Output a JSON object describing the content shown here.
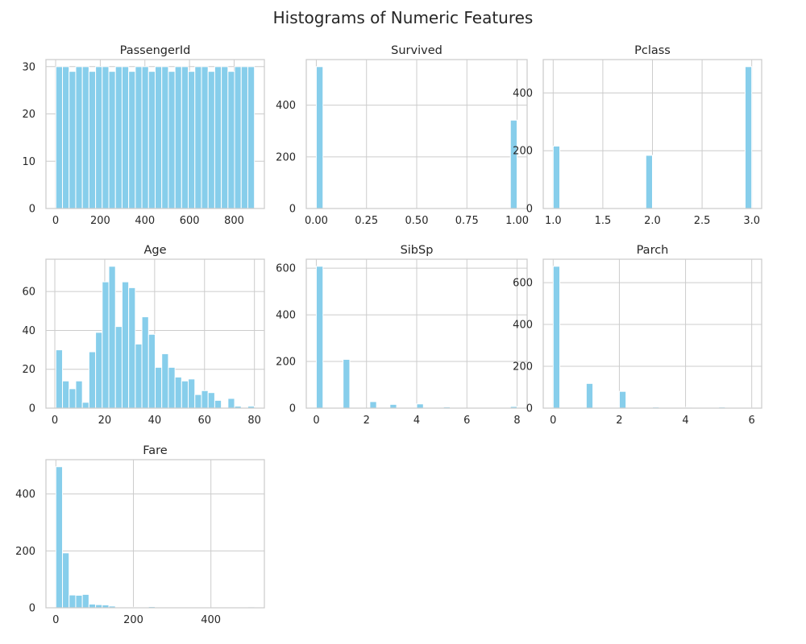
{
  "figure": {
    "title": "Histograms of Numeric Features",
    "bar_color": "#87ceeb",
    "grid_color": "#cccccc",
    "spine_color": "#cccccc",
    "background": "#ffffff"
  },
  "chart_data": [
    {
      "type": "bar",
      "title": "PassengerId",
      "xlabel": "",
      "ylabel": "",
      "bins": 30,
      "bin_range": [
        1,
        891
      ],
      "values": [
        30,
        30,
        29,
        30,
        30,
        29,
        30,
        30,
        29,
        30,
        30,
        29,
        30,
        30,
        29,
        30,
        30,
        29,
        30,
        30,
        29,
        30,
        30,
        29,
        30,
        30,
        29,
        30,
        30,
        30
      ],
      "xlim": [
        -43.5,
        935.5
      ],
      "ylim": [
        0,
        31.5
      ],
      "xticks": [
        0,
        200,
        400,
        600,
        800
      ],
      "yticks": [
        0,
        10,
        20,
        30
      ],
      "xtick_labels": [
        "0",
        "200",
        "400",
        "600",
        "800"
      ],
      "ytick_labels": [
        "0",
        "10",
        "20",
        "30"
      ],
      "grid": true
    },
    {
      "type": "bar",
      "title": "Survived",
      "xlabel": "",
      "ylabel": "",
      "bins": 30,
      "bin_range": [
        0,
        1
      ],
      "values": [
        549,
        0,
        0,
        0,
        0,
        0,
        0,
        0,
        0,
        0,
        0,
        0,
        0,
        0,
        0,
        0,
        0,
        0,
        0,
        0,
        0,
        0,
        0,
        0,
        0,
        0,
        0,
        0,
        0,
        342
      ],
      "xlim": [
        -0.05,
        1.05
      ],
      "ylim": [
        0,
        576.45
      ],
      "xticks": [
        0,
        0.25,
        0.5,
        0.75,
        1.0
      ],
      "yticks": [
        0,
        200,
        400
      ],
      "xtick_labels": [
        "0.00",
        "0.25",
        "0.50",
        "0.75",
        "1.00"
      ],
      "ytick_labels": [
        "0",
        "200",
        "400"
      ],
      "grid": true
    },
    {
      "type": "bar",
      "title": "Pclass",
      "xlabel": "",
      "ylabel": "",
      "bins": 30,
      "bin_range": [
        1,
        3
      ],
      "values": [
        216,
        0,
        0,
        0,
        0,
        0,
        0,
        0,
        0,
        0,
        0,
        0,
        0,
        0,
        184,
        0,
        0,
        0,
        0,
        0,
        0,
        0,
        0,
        0,
        0,
        0,
        0,
        0,
        0,
        491
      ],
      "xlim": [
        0.9,
        3.1
      ],
      "ylim": [
        0,
        515.55
      ],
      "xticks": [
        1.0,
        1.5,
        2.0,
        2.5,
        3.0
      ],
      "yticks": [
        0,
        200,
        400
      ],
      "xtick_labels": [
        "1.0",
        "1.5",
        "2.0",
        "2.5",
        "3.0"
      ],
      "ytick_labels": [
        "0",
        "200",
        "400"
      ],
      "grid": true
    },
    {
      "type": "bar",
      "title": "Age",
      "xlabel": "",
      "ylabel": "",
      "bins": 30,
      "bin_range": [
        0.42,
        80
      ],
      "values": [
        30,
        14,
        10,
        14,
        3,
        29,
        39,
        65,
        73,
        42,
        65,
        62,
        33,
        47,
        38,
        21,
        28,
        21,
        16,
        14,
        15,
        7,
        9,
        8,
        4,
        0,
        5,
        1,
        0,
        1
      ],
      "xlim": [
        -3.56,
        83.98
      ],
      "ylim": [
        0,
        76.65
      ],
      "xticks": [
        0,
        20,
        40,
        60,
        80
      ],
      "yticks": [
        0,
        20,
        40,
        60
      ],
      "xtick_labels": [
        "0",
        "20",
        "40",
        "60",
        "80"
      ],
      "ytick_labels": [
        "0",
        "20",
        "40",
        "60"
      ],
      "grid": true
    },
    {
      "type": "bar",
      "title": "SibSp",
      "xlabel": "",
      "ylabel": "",
      "bins": 30,
      "bin_range": [
        0,
        8
      ],
      "values": [
        608,
        0,
        0,
        0,
        209,
        0,
        0,
        0,
        28,
        0,
        0,
        16,
        0,
        0,
        0,
        18,
        0,
        0,
        0,
        5,
        0,
        0,
        0,
        0,
        0,
        0,
        0,
        0,
        0,
        7
      ],
      "xlim": [
        -0.4,
        8.4
      ],
      "ylim": [
        0,
        638.4
      ],
      "xticks": [
        0,
        2,
        4,
        6,
        8
      ],
      "yticks": [
        0,
        200,
        400,
        600
      ],
      "xtick_labels": [
        "0",
        "2",
        "4",
        "6",
        "8"
      ],
      "ytick_labels": [
        "0",
        "200",
        "400",
        "600"
      ],
      "grid": true
    },
    {
      "type": "bar",
      "title": "Parch",
      "xlabel": "",
      "ylabel": "",
      "bins": 30,
      "bin_range": [
        0,
        6
      ],
      "values": [
        678,
        0,
        0,
        0,
        0,
        118,
        0,
        0,
        0,
        0,
        80,
        0,
        0,
        0,
        0,
        5,
        0,
        0,
        0,
        0,
        4,
        0,
        0,
        0,
        0,
        5,
        0,
        0,
        0,
        1
      ],
      "xlim": [
        -0.3,
        6.3
      ],
      "ylim": [
        0,
        711.9
      ],
      "xticks": [
        0,
        2,
        4,
        6
      ],
      "yticks": [
        0,
        200,
        400,
        600
      ],
      "xtick_labels": [
        "0",
        "2",
        "4",
        "6"
      ],
      "ytick_labels": [
        "0",
        "200",
        "400",
        "600"
      ],
      "grid": true
    },
    {
      "type": "bar",
      "title": "Fare",
      "xlabel": "",
      "ylabel": "",
      "bins": 30,
      "bin_range": [
        0,
        512.33
      ],
      "values": [
        496,
        193,
        45,
        44,
        47,
        13,
        11,
        10,
        6,
        0,
        0,
        2,
        1,
        1,
        4,
        2,
        0,
        0,
        0,
        0,
        0,
        0,
        0,
        0,
        0,
        0,
        0,
        0,
        0,
        3
      ],
      "xlim": [
        -25.6,
        537.9
      ],
      "ylim": [
        0,
        520.8
      ],
      "xticks": [
        0,
        200,
        400
      ],
      "yticks": [
        0,
        200,
        400
      ],
      "xtick_labels": [
        "0",
        "200",
        "400"
      ],
      "ytick_labels": [
        "0",
        "200",
        "400"
      ],
      "grid": true
    }
  ]
}
